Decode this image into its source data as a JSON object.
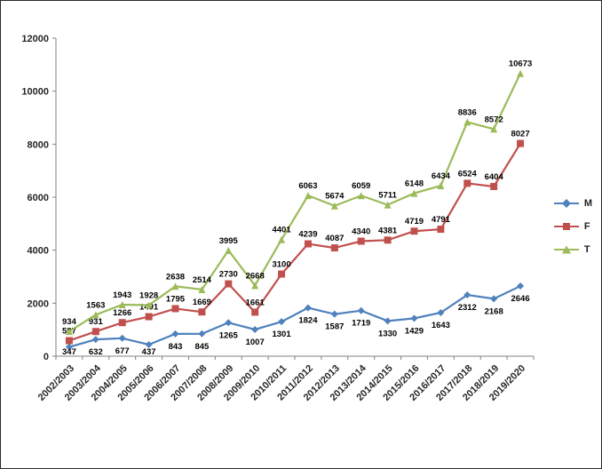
{
  "chart_data": {
    "type": "line",
    "title": "",
    "xlabel": "",
    "ylabel": "",
    "categories": [
      "2002/2003",
      "2003/2004",
      "2004/2005",
      "2005/2006",
      "2006/2007",
      "2007/2008",
      "2008/2009",
      "2009/2010",
      "2010/2011",
      "2011/2012",
      "2012/2013",
      "2013/2014",
      "2014/2015",
      "2015/2016",
      "2016/2017",
      "2017/2018",
      "2018/2019",
      "2019/2020"
    ],
    "series": [
      {
        "name": "M",
        "color": "#4F81BD",
        "marker": "diamond",
        "label_pos": "below",
        "values": [
          347,
          632,
          677,
          437,
          843,
          845,
          1265,
          1007,
          1301,
          1824,
          1587,
          1719,
          1330,
          1429,
          1643,
          2312,
          2168,
          2646
        ]
      },
      {
        "name": "F",
        "color": "#C0504D",
        "marker": "square",
        "label_pos": "above",
        "values": [
          587,
          931,
          1266,
          1491,
          1795,
          1669,
          2730,
          1661,
          3100,
          4239,
          4087,
          4340,
          4381,
          4719,
          4791,
          6524,
          6404,
          8027
        ]
      },
      {
        "name": "T",
        "color": "#9BBB59",
        "marker": "triangle",
        "label_pos": "above",
        "values": [
          934,
          1563,
          1943,
          1928,
          2638,
          2514,
          3995,
          2668,
          4401,
          6063,
          5674,
          6059,
          5711,
          6148,
          6434,
          8836,
          8572,
          10673
        ]
      }
    ],
    "ylim": [
      0,
      12000
    ],
    "ytick_step": 2000,
    "grid": false,
    "legend_position": "right"
  }
}
